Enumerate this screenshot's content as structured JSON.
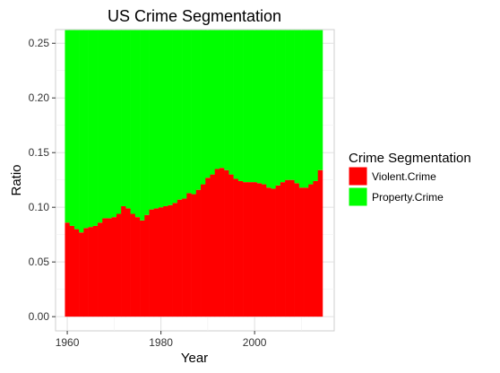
{
  "chart_data": {
    "type": "bar",
    "stacked": true,
    "title": "US Crime Segmentation",
    "xlabel": "Year",
    "ylabel": "Ratio",
    "x": [
      1960,
      1961,
      1962,
      1963,
      1964,
      1965,
      1966,
      1967,
      1968,
      1969,
      1970,
      1971,
      1972,
      1973,
      1974,
      1975,
      1976,
      1977,
      1978,
      1979,
      1980,
      1981,
      1982,
      1983,
      1984,
      1985,
      1986,
      1987,
      1988,
      1989,
      1990,
      1991,
      1992,
      1993,
      1994,
      1995,
      1996,
      1997,
      1998,
      1999,
      2000,
      2001,
      2002,
      2003,
      2004,
      2005,
      2006,
      2007,
      2008,
      2009,
      2010,
      2011,
      2012,
      2013,
      2014
    ],
    "series": [
      {
        "name": "Violent.Crime",
        "color": "#ff0000",
        "values": [
          0.086,
          0.083,
          0.08,
          0.077,
          0.081,
          0.082,
          0.083,
          0.086,
          0.09,
          0.09,
          0.091,
          0.094,
          0.101,
          0.099,
          0.094,
          0.091,
          0.088,
          0.093,
          0.098,
          0.099,
          0.1,
          0.101,
          0.102,
          0.104,
          0.107,
          0.108,
          0.113,
          0.112,
          0.116,
          0.121,
          0.127,
          0.13,
          0.135,
          0.136,
          0.134,
          0.13,
          0.126,
          0.124,
          0.123,
          0.123,
          0.123,
          0.122,
          0.121,
          0.118,
          0.117,
          0.12,
          0.123,
          0.125,
          0.125,
          0.122,
          0.118,
          0.118,
          0.121,
          0.124,
          0.134
        ]
      },
      {
        "name": "Property.Crime",
        "color": "#00ff00",
        "values": [
          0.176,
          0.179,
          0.182,
          0.185,
          0.181,
          0.18,
          0.179,
          0.176,
          0.172,
          0.172,
          0.171,
          0.168,
          0.161,
          0.163,
          0.168,
          0.171,
          0.174,
          0.169,
          0.164,
          0.163,
          0.162,
          0.161,
          0.16,
          0.158,
          0.155,
          0.154,
          0.149,
          0.15,
          0.146,
          0.141,
          0.135,
          0.132,
          0.127,
          0.126,
          0.128,
          0.132,
          0.136,
          0.138,
          0.139,
          0.139,
          0.139,
          0.14,
          0.141,
          0.144,
          0.145,
          0.142,
          0.139,
          0.137,
          0.137,
          0.14,
          0.144,
          0.144,
          0.141,
          0.138,
          0.128
        ]
      }
    ],
    "xlim": [
      1957.5,
      2017
    ],
    "ylim": [
      -0.013,
      0.2625
    ],
    "x_ticks": [
      1960,
      1980,
      2000
    ],
    "y_ticks": [
      0.0,
      0.05,
      0.1,
      0.15,
      0.2,
      0.25
    ],
    "x_tick_labels": [
      "1960",
      "1980",
      "2000"
    ],
    "y_tick_labels": [
      "0.00",
      "0.05",
      "0.10",
      "0.15",
      "0.20",
      "0.25"
    ],
    "grid": true,
    "legend": {
      "title": "Crime Segmentation",
      "position": "right",
      "items": [
        "Violent.Crime",
        "Property.Crime"
      ]
    }
  }
}
